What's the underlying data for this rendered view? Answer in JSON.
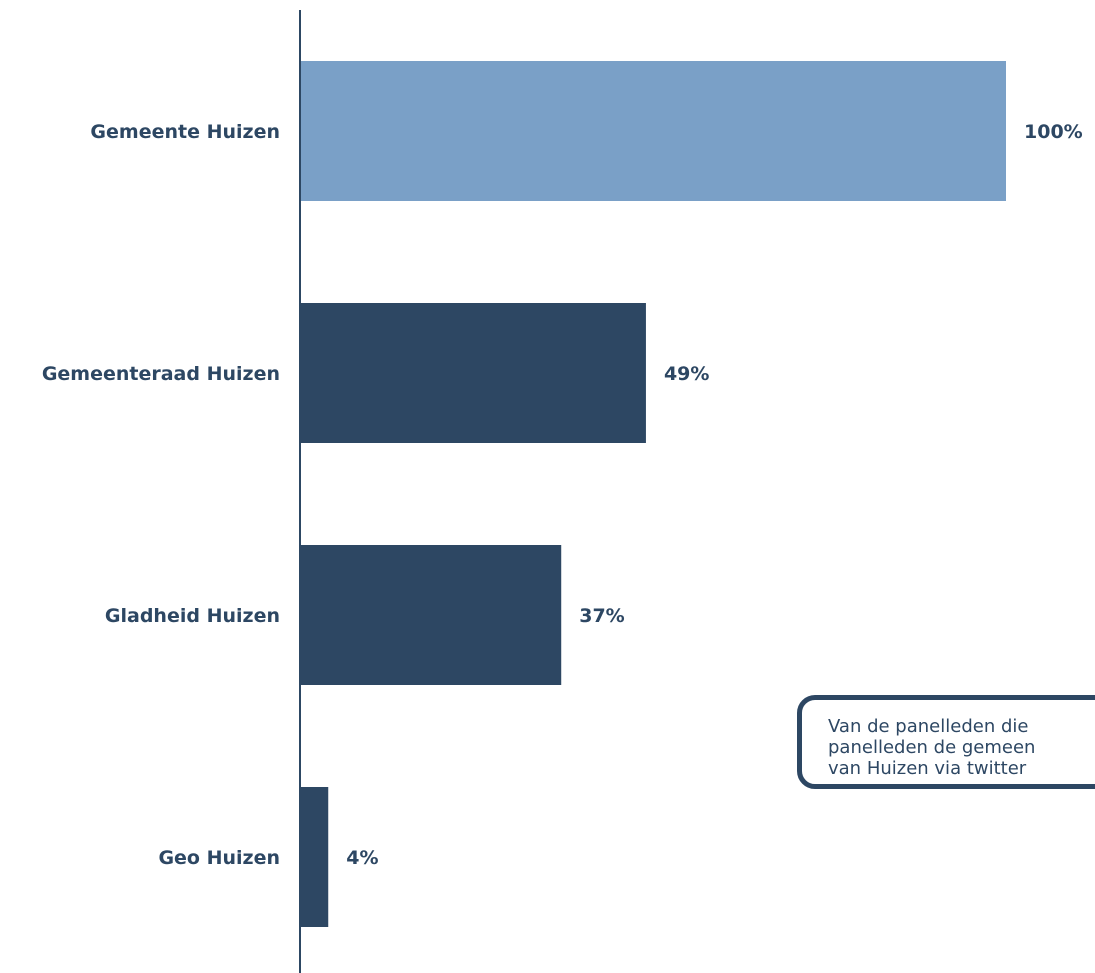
{
  "chart_data": {
    "type": "bar",
    "orientation": "horizontal",
    "categories": [
      "Gemeente Huizen",
      "Gemeenteraad Huizen",
      "Gladheid Huizen",
      "Geo Huizen"
    ],
    "values": [
      100,
      49,
      37,
      4
    ],
    "value_labels": [
      "100%",
      "49%",
      "37%",
      "4%"
    ],
    "xlim": [
      0,
      100
    ],
    "colors": [
      "#7aa0c7",
      "#2d4763",
      "#2d4763",
      "#2d4763"
    ],
    "grid": false
  },
  "callout": {
    "lines": [
      "Van de panelleden die",
      "panelleden de gemeen",
      "van Huizen via twitter"
    ]
  }
}
